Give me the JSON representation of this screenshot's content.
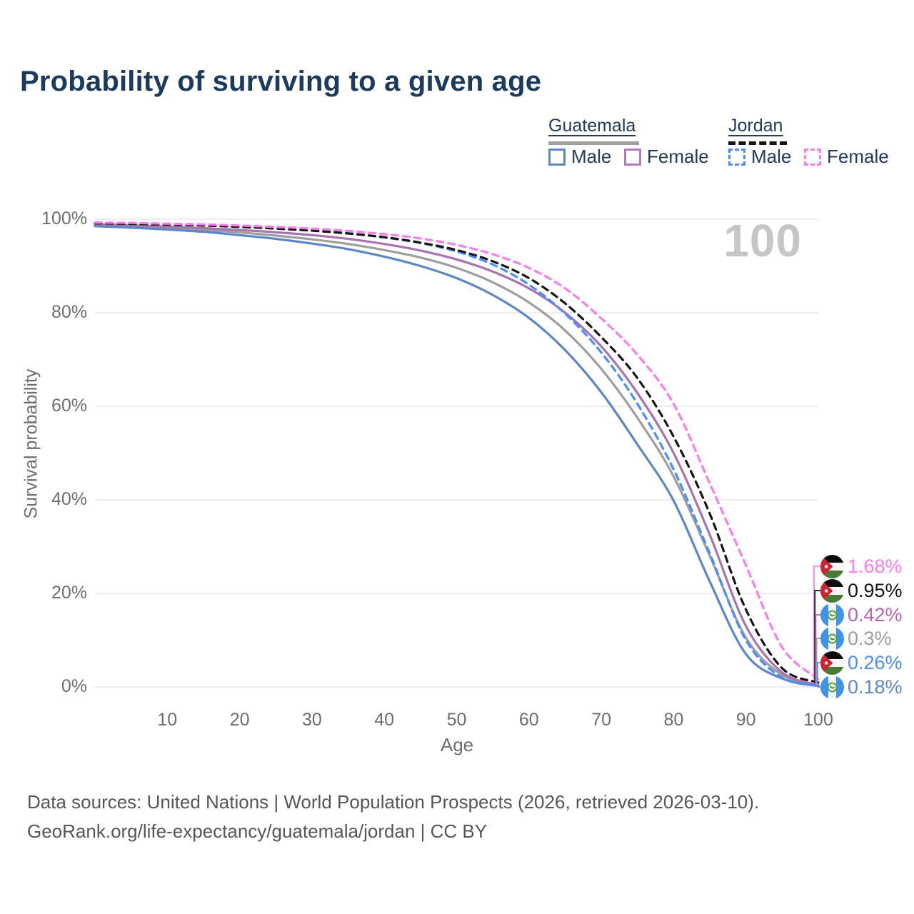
{
  "title": "Probability of surviving to a given age",
  "watermark": "100",
  "legend": {
    "groups": [
      {
        "label": "Guatemala",
        "sample_style": "solid",
        "sample_color": "#9e9e9e",
        "items": [
          {
            "label": "Male",
            "color": "#5b87c5",
            "dashed": false
          },
          {
            "label": "Female",
            "color": "#b279bd",
            "dashed": false
          }
        ]
      },
      {
        "label": "Jordan",
        "sample_style": "dashed",
        "sample_color": "#161616",
        "items": [
          {
            "label": "Male",
            "color": "#4a8ef9",
            "dashed": true
          },
          {
            "label": "Female",
            "color": "#fc7cee",
            "dashed": true
          }
        ]
      }
    ]
  },
  "axes": {
    "y_title": "Survival probability",
    "x_title": "Age",
    "y_ticks": [
      "0%",
      "20%",
      "40%",
      "60%",
      "80%",
      "100%"
    ],
    "x_ticks": [
      "10",
      "20",
      "30",
      "40",
      "50",
      "60",
      "70",
      "80",
      "90",
      "100"
    ]
  },
  "chart_data": {
    "type": "line",
    "title": "Probability of surviving to a given age",
    "xlabel": "Age",
    "ylabel": "Survival probability",
    "x": [
      0,
      5,
      10,
      15,
      20,
      25,
      30,
      35,
      40,
      45,
      50,
      55,
      60,
      65,
      70,
      75,
      80,
      85,
      90,
      95,
      100
    ],
    "xlim": [
      0,
      100
    ],
    "ylim": [
      0,
      100
    ],
    "grid": "horizontal",
    "legend_position": "top-right",
    "series": [
      {
        "name": "Guatemala Male",
        "color": "#5b87c5",
        "dash": "solid",
        "end_label": "0.18%",
        "values": [
          98.5,
          98.2,
          97.8,
          97.3,
          96.6,
          95.8,
          94.8,
          93.6,
          92.0,
          90.0,
          87.4,
          83.8,
          78.9,
          72.0,
          63.0,
          51.8,
          39.8,
          22.5,
          7.0,
          1.8,
          0.18
        ]
      },
      {
        "name": "Guatemala Female",
        "color": "#a873b3",
        "dash": "solid",
        "end_label": "0.42%",
        "values": [
          98.9,
          98.7,
          98.4,
          98.1,
          97.7,
          97.2,
          96.6,
          95.8,
          94.7,
          93.3,
          91.4,
          88.8,
          85.2,
          80.0,
          72.8,
          62.8,
          50.0,
          32.5,
          13.0,
          3.1,
          0.42
        ]
      },
      {
        "name": "Guatemala Both sexes",
        "color": "#9e9e9e",
        "dash": "solid",
        "end_label": "0.3%",
        "values": [
          98.7,
          98.45,
          98.1,
          97.7,
          97.2,
          96.5,
          95.7,
          94.7,
          93.4,
          91.8,
          89.6,
          86.5,
          82.2,
          76.2,
          68.0,
          57.5,
          45.0,
          28.0,
          10.5,
          2.6,
          0.3
        ]
      },
      {
        "name": "Jordan Male",
        "color": "#4a8ef9",
        "dash": "dashed",
        "end_label": "0.26%",
        "values": [
          99.2,
          99.05,
          98.9,
          98.7,
          98.4,
          98.05,
          97.6,
          97.0,
          96.1,
          94.9,
          93.1,
          90.3,
          86.0,
          79.8,
          71.5,
          60.5,
          46.5,
          28.5,
          10.0,
          2.0,
          0.26
        ]
      },
      {
        "name": "Jordan Female",
        "color": "#fc7cee",
        "dash": "dashed",
        "end_label": "1.68%",
        "values": [
          99.3,
          99.2,
          99.05,
          98.9,
          98.65,
          98.35,
          98.0,
          97.5,
          96.8,
          95.9,
          94.5,
          92.5,
          89.6,
          85.2,
          78.8,
          71.0,
          60.5,
          43.5,
          26.0,
          8.5,
          1.68
        ]
      },
      {
        "name": "Jordan Both sexes",
        "color": "#161616",
        "dash": "dashed",
        "end_label": "0.95%",
        "values": [
          99.15,
          99.0,
          98.85,
          98.65,
          98.35,
          98.0,
          97.55,
          96.95,
          96.15,
          95.0,
          93.4,
          91.0,
          87.4,
          82.0,
          74.8,
          66.0,
          53.5,
          37.0,
          16.5,
          4.0,
          0.95
        ]
      }
    ]
  },
  "end_labels": [
    {
      "value": "1.68%",
      "color": "#fc7cee",
      "flag": "jordan",
      "series": "Jordan Female"
    },
    {
      "value": "0.95%",
      "color": "#161616",
      "flag": "jordan",
      "series": "Jordan Both sexes"
    },
    {
      "value": "0.42%",
      "color": "#b465b4",
      "flag": "guatemala",
      "series": "Guatemala Female"
    },
    {
      "value": "0.3%",
      "color": "#9e9e9e",
      "flag": "guatemala",
      "series": "Guatemala Both sexes"
    },
    {
      "value": "0.26%",
      "color": "#4a8ef9",
      "flag": "jordan",
      "series": "Jordan Male"
    },
    {
      "value": "0.18%",
      "color": "#5b87c5",
      "flag": "guatemala",
      "series": "Guatemala Male"
    }
  ],
  "footer": {
    "line1": "Data sources: United Nations | World Population Prospects (2026, retrieved 2026-03-10).",
    "line2": "GeoRank.org/life-expectancy/guatemala/jordan | CC BY"
  }
}
